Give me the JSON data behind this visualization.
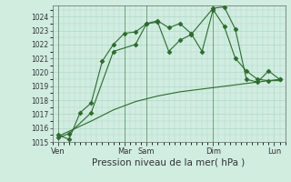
{
  "xlabel": "Pression niveau de la mer( hPa )",
  "background_color": "#d0ede0",
  "grid_color": "#b0d8c8",
  "line_color": "#2d6a2d",
  "ylim": [
    1015,
    1024.8
  ],
  "yticks": [
    1015,
    1016,
    1017,
    1018,
    1019,
    1020,
    1021,
    1022,
    1023,
    1024
  ],
  "day_labels": [
    "Ven",
    "Mar",
    "Sam",
    "Dim",
    "Lun"
  ],
  "day_positions": [
    0.5,
    6.5,
    8.5,
    14.5,
    20.0
  ],
  "xlim": [
    0,
    21
  ],
  "series1_x": [
    0.5,
    1.5,
    2.5,
    3.5,
    4.5,
    5.5,
    6.5,
    7.5,
    8.5,
    9.5,
    10.5,
    11.5,
    12.5,
    14.5,
    15.5,
    16.5,
    17.5,
    18.5,
    19.5,
    20.5
  ],
  "series1_y": [
    1015.5,
    1015.2,
    1017.1,
    1017.8,
    1020.8,
    1022.0,
    1022.8,
    1022.9,
    1023.5,
    1023.6,
    1021.5,
    1022.3,
    1022.7,
    1024.6,
    1024.7,
    1023.1,
    1019.5,
    1019.3,
    1020.1,
    1019.5
  ],
  "series2_x": [
    0.5,
    1.5,
    3.5,
    5.5,
    7.5,
    8.5,
    9.5,
    10.5,
    11.5,
    12.5,
    13.5,
    14.5,
    15.5,
    16.5,
    17.5,
    18.5,
    19.5,
    20.5
  ],
  "series2_y": [
    1015.3,
    1015.6,
    1017.1,
    1021.5,
    1022.0,
    1023.5,
    1023.7,
    1023.2,
    1023.5,
    1022.8,
    1021.5,
    1024.5,
    1023.3,
    1021.0,
    1020.1,
    1019.5,
    1019.4,
    1019.5
  ],
  "series3_x": [
    0.5,
    3.5,
    5.5,
    7.5,
    9.5,
    11.5,
    13.5,
    15.5,
    17.5,
    19.5,
    20.5
  ],
  "series3_y": [
    1015.4,
    1016.5,
    1017.3,
    1017.9,
    1018.3,
    1018.6,
    1018.8,
    1019.0,
    1019.2,
    1019.4,
    1019.4
  ]
}
